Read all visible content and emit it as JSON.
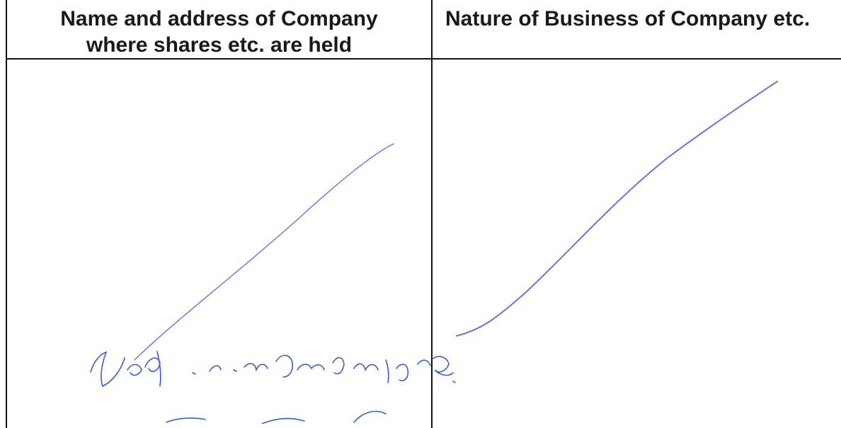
{
  "table": {
    "col_left_header_line1": "Name and address of Company",
    "col_left_header_line2": "where shares etc. are held",
    "col_right_header": "Nature of Business of Company etc."
  },
  "ink": {
    "stroke_color": "#6f6fe6",
    "scribble_color": "#3b5bd6"
  }
}
